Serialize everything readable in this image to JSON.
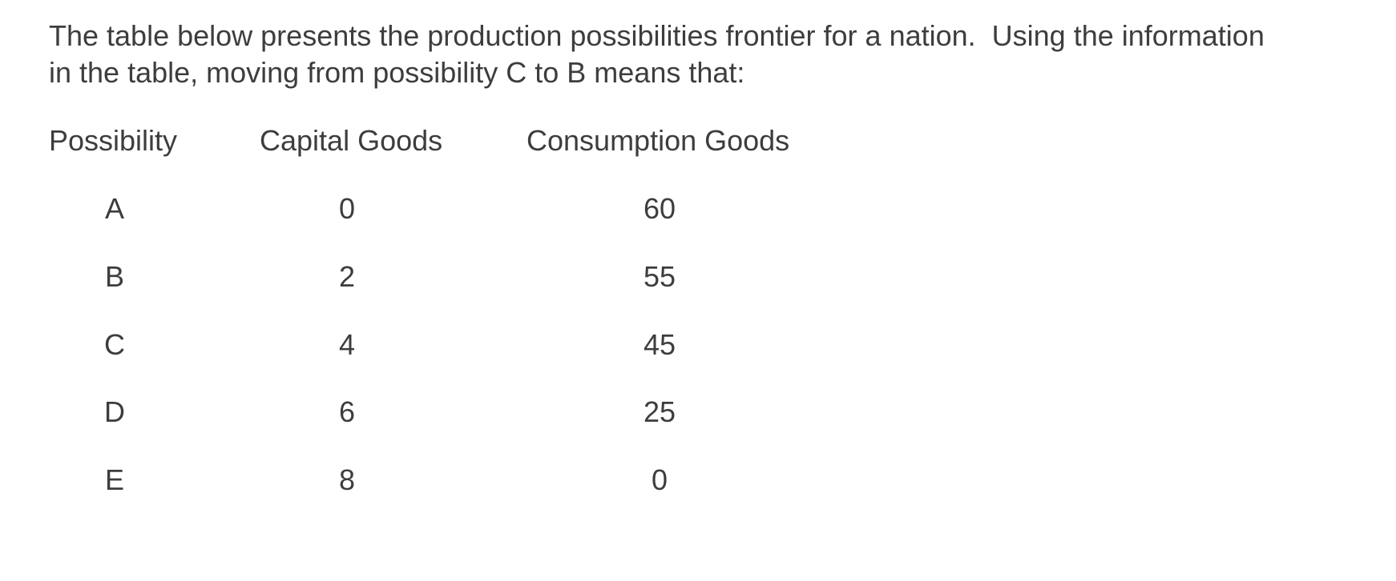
{
  "question": "The table below presents the production possibilities frontier for a nation.  Using the information in the table, moving from possibility C to B means that:",
  "table": {
    "header": [
      "Possibility",
      "Capital Goods",
      "Consumption Goods"
    ],
    "rows": [
      [
        "A",
        0,
        60
      ],
      [
        "B",
        2,
        55
      ],
      [
        "C",
        4,
        45
      ],
      [
        "D",
        6,
        25
      ],
      [
        "E",
        8,
        0
      ]
    ]
  }
}
